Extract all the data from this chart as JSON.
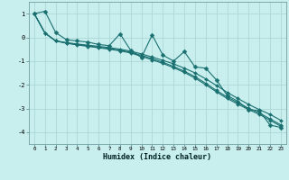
{
  "xlabel": "Humidex (Indice chaleur)",
  "bg_color": "#c8eeee",
  "grid_color": "#a8d4d4",
  "line_color": "#1a7070",
  "xlim": [
    -0.5,
    23.5
  ],
  "ylim": [
    -4.5,
    1.5
  ],
  "xticks": [
    0,
    1,
    2,
    3,
    4,
    5,
    6,
    7,
    8,
    9,
    10,
    11,
    12,
    13,
    14,
    15,
    16,
    17,
    18,
    19,
    20,
    21,
    22,
    23
  ],
  "yticks": [
    -4,
    -3,
    -2,
    -1,
    0,
    1
  ],
  "noisy_line": [
    1.0,
    1.1,
    0.2,
    -0.1,
    -0.15,
    -0.2,
    -0.3,
    -0.35,
    0.15,
    -0.55,
    -0.85,
    0.1,
    -0.75,
    -1.0,
    -0.6,
    -1.25,
    -1.3,
    -1.8,
    -2.45,
    -2.7,
    -3.05,
    -3.1,
    -3.7,
    -3.8
  ],
  "smooth_line1": [
    1.0,
    0.18,
    -0.15,
    -0.22,
    -0.28,
    -0.33,
    -0.38,
    -0.43,
    -0.5,
    -0.58,
    -0.7,
    -0.83,
    -0.97,
    -1.12,
    -1.3,
    -1.5,
    -1.75,
    -2.03,
    -2.32,
    -2.58,
    -2.83,
    -3.05,
    -3.25,
    -3.5
  ],
  "smooth_line2": [
    1.0,
    0.18,
    -0.15,
    -0.25,
    -0.32,
    -0.38,
    -0.44,
    -0.5,
    -0.57,
    -0.66,
    -0.8,
    -0.95,
    -1.1,
    -1.28,
    -1.48,
    -1.72,
    -2.0,
    -2.3,
    -2.58,
    -2.82,
    -3.05,
    -3.25,
    -3.5,
    -3.75
  ],
  "smooth_line3": [
    1.0,
    0.18,
    -0.15,
    -0.24,
    -0.3,
    -0.36,
    -0.41,
    -0.47,
    -0.54,
    -0.63,
    -0.76,
    -0.9,
    -1.05,
    -1.23,
    -1.43,
    -1.66,
    -1.94,
    -2.24,
    -2.52,
    -2.76,
    -2.99,
    -3.19,
    -3.44,
    -3.69
  ]
}
